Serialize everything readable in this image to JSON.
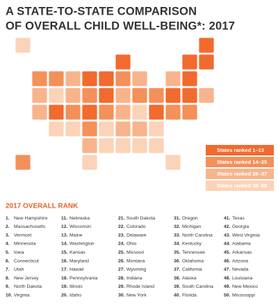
{
  "header": {
    "title_lines": [
      "A STATE-TO-STATE COMPARISON",
      "OF OVERALL CHILD WELL-BEING*: 2017"
    ]
  },
  "legend": [
    {
      "label": "States ranked 1–13",
      "min": 1,
      "max": 13,
      "color": "#f26a2e"
    },
    {
      "label": "States ranked 14–25",
      "min": 14,
      "max": 25,
      "color": "#f4905a"
    },
    {
      "label": "States ranked 26–37",
      "min": 26,
      "max": 37,
      "color": "#f7b48c"
    },
    {
      "label": "States ranked 38–50",
      "min": 38,
      "max": 50,
      "color": "#fbd3b8"
    }
  ],
  "rank_list": {
    "title": "2017 OVERALL RANK",
    "items": [
      {
        "rank": "1.",
        "state": "New Hampshire"
      },
      {
        "rank": "2.",
        "state": "Massachusetts"
      },
      {
        "rank": "3.",
        "state": "Vermont"
      },
      {
        "rank": "4.",
        "state": "Minnesota"
      },
      {
        "rank": "5.",
        "state": "Iowa"
      },
      {
        "rank": "6.",
        "state": "Connecticut"
      },
      {
        "rank": "7.",
        "state": "Utah"
      },
      {
        "rank": "8.",
        "state": "New Jersey"
      },
      {
        "rank": "9.",
        "state": "North Dakota"
      },
      {
        "rank": "10.",
        "state": "Virginia"
      },
      {
        "rank": "11.",
        "state": "Nebraska"
      },
      {
        "rank": "12.",
        "state": "Wisconsin"
      },
      {
        "rank": "13.",
        "state": "Maine"
      },
      {
        "rank": "14.",
        "state": "Washington"
      },
      {
        "rank": "15.",
        "state": "Kansas"
      },
      {
        "rank": "16.",
        "state": "Maryland"
      },
      {
        "rank": "17.",
        "state": "Hawaii"
      },
      {
        "rank": "18.",
        "state": "Pennsylvania"
      },
      {
        "rank": "19.",
        "state": "Illinois"
      },
      {
        "rank": "20.",
        "state": "Idaho"
      },
      {
        "rank": "21.",
        "state": "South Dakota"
      },
      {
        "rank": "22.",
        "state": "Colorado"
      },
      {
        "rank": "23.",
        "state": "Delaware"
      },
      {
        "rank": "24.",
        "state": "Ohio"
      },
      {
        "rank": "25.",
        "state": "Missouri"
      },
      {
        "rank": "26.",
        "state": "Montana"
      },
      {
        "rank": "27.",
        "state": "Wyoming"
      },
      {
        "rank": "28.",
        "state": "Indiana"
      },
      {
        "rank": "29.",
        "state": "Rhode Island"
      },
      {
        "rank": "30.",
        "state": "New York"
      },
      {
        "rank": "31.",
        "state": "Oregon"
      },
      {
        "rank": "32.",
        "state": "Michigan"
      },
      {
        "rank": "33.",
        "state": "North Carolina"
      },
      {
        "rank": "34.",
        "state": "Kentucky"
      },
      {
        "rank": "35.",
        "state": "Tennessee"
      },
      {
        "rank": "36.",
        "state": "Oklahoma"
      },
      {
        "rank": "37.",
        "state": "California"
      },
      {
        "rank": "38.",
        "state": "Alaska"
      },
      {
        "rank": "39.",
        "state": "South Carolina"
      },
      {
        "rank": "40.",
        "state": "Florida"
      },
      {
        "rank": "41.",
        "state": "Texas"
      },
      {
        "rank": "42.",
        "state": "Georgia"
      },
      {
        "rank": "43.",
        "state": "West Virginia"
      },
      {
        "rank": "44.",
        "state": "Alabama"
      },
      {
        "rank": "45.",
        "state": "Arkansas"
      },
      {
        "rank": "46.",
        "state": "Arizona"
      },
      {
        "rank": "47.",
        "state": "Nevada"
      },
      {
        "rank": "48.",
        "state": "Louisiana"
      },
      {
        "rank": "49.",
        "state": "New Mexico"
      },
      {
        "rank": "50.",
        "state": "Mississippi"
      }
    ]
  }
}
